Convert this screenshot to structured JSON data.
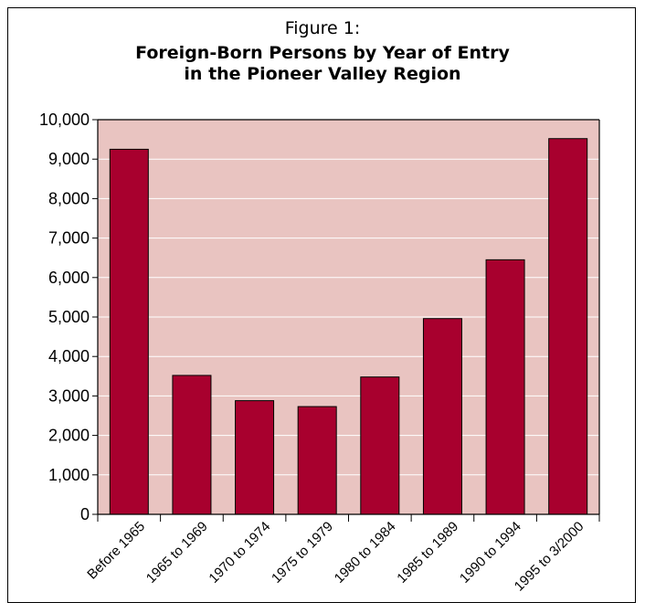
{
  "figure_label": "Figure 1:",
  "title_lines": [
    "Foreign-Born Persons by Year of Entry",
    "in the Pioneer Valley Region"
  ],
  "colors": {
    "plot_background": "#e9c4c1",
    "bar_fill": "#a8002e",
    "bar_stroke": "#000000",
    "gridline": "#ffffff"
  },
  "chart_data": {
    "type": "bar",
    "title": "Foreign-Born Persons by Year of Entry in the Pioneer Valley Region",
    "categories": [
      "Before 1965",
      "1965 to 1969",
      "1970 to 1974",
      "1975 to 1979",
      "1980 to 1984",
      "1985 to 1989",
      "1990 to 1994",
      "1995 to 3/2000"
    ],
    "values": [
      9250,
      3520,
      2880,
      2730,
      3480,
      4960,
      6450,
      9520
    ],
    "ylim": [
      0,
      10000
    ],
    "yticks": [
      0,
      1000,
      2000,
      3000,
      4000,
      5000,
      6000,
      7000,
      8000,
      9000,
      10000
    ],
    "ytick_labels": [
      "0",
      "1,000",
      "2,000",
      "3,000",
      "4,000",
      "5,000",
      "6,000",
      "7,000",
      "8,000",
      "9,000",
      "10,000"
    ],
    "xlabel": "",
    "ylabel": "",
    "grid": "horizontal",
    "legend": "none"
  }
}
